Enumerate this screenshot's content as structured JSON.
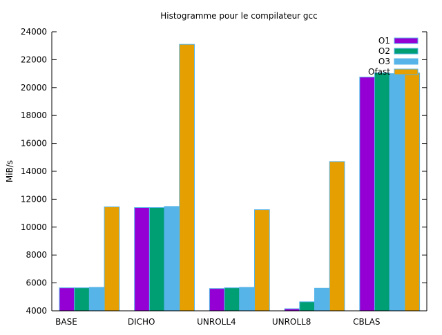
{
  "chart_data": {
    "type": "bar",
    "title": "Histogramme pour le compilateur gcc",
    "xlabel": "",
    "ylabel": "MiB/s",
    "ylim": [
      4000,
      24000
    ],
    "yticks": [
      4000,
      6000,
      8000,
      10000,
      12000,
      14000,
      16000,
      18000,
      20000,
      22000,
      24000
    ],
    "categories": [
      "BASE",
      "DICHO",
      "UNROLL4",
      "UNROLL8",
      "CBLAS"
    ],
    "series": [
      {
        "name": "O1",
        "color": "#9400d3",
        "values": [
          5650,
          11400,
          5600,
          4150,
          20750
        ]
      },
      {
        "name": "O2",
        "color": "#009e73",
        "values": [
          5650,
          11400,
          5650,
          4650,
          21050
        ]
      },
      {
        "name": "O3",
        "color": "#56b4e9",
        "values": [
          5680,
          11480,
          5680,
          5620,
          21000
        ]
      },
      {
        "name": "Ofast",
        "color": "#e69f00",
        "values": [
          11450,
          23100,
          11250,
          14700,
          21050
        ]
      }
    ],
    "legend_position": "top-right",
    "grid": false
  }
}
